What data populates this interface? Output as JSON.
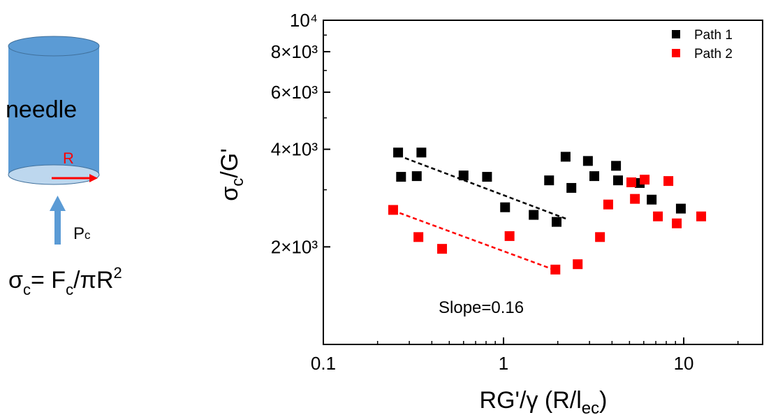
{
  "diagram": {
    "cylinder_label": "needle",
    "radius_label": "R",
    "force_label": {
      "main": "P",
      "sub": "c"
    },
    "equation": [
      {
        "text": "σ"
      },
      {
        "text": "c",
        "sub": true
      },
      {
        "text": "= F"
      },
      {
        "text": "c",
        "sub": true
      },
      {
        "text": "/πR"
      },
      {
        "text": "2",
        "sup": true
      }
    ]
  },
  "chart_data": {
    "type": "scatter",
    "xlabel": {
      "main": "RG'/γ  (R/l",
      "sub": "ec",
      "rest": ")"
    },
    "ylabel": {
      "main": "σ",
      "sub": "c",
      "rest": "/G'"
    },
    "xscale": "log",
    "yscale": "log",
    "xlim": [
      0.1,
      27.4
    ],
    "ylim": [
      1000,
      10000
    ],
    "xticks": [
      0.1,
      1,
      10
    ],
    "xminorticks": [
      0.2,
      0.3,
      0.4,
      0.5,
      0.6,
      0.7,
      0.8,
      0.9,
      2,
      3,
      4,
      5,
      6,
      7,
      8,
      9,
      20
    ],
    "yticks": [
      {
        "value": 2000,
        "label": "2×10³"
      },
      {
        "value": 4000,
        "label": "4×10³"
      },
      {
        "value": 6000,
        "label": "6×10³"
      },
      {
        "value": 8000,
        "label": "8×10³"
      },
      {
        "value": 10000,
        "label": "10⁴"
      }
    ],
    "yminorticks": [
      1000,
      3000,
      5000,
      7000,
      9000
    ],
    "legend": "upper right",
    "series": [
      {
        "name": "Path 1",
        "color": "#000000",
        "x": [
          0.26,
          0.27,
          0.33,
          0.35,
          0.6,
          0.81,
          1.02,
          1.47,
          1.97,
          1.79,
          2.21,
          2.38,
          2.94,
          3.19,
          4.21,
          4.32,
          5.7,
          6.64,
          9.64
        ],
        "values": [
          3908,
          3289,
          3305,
          3908,
          3321,
          3289,
          2649,
          2510,
          2388,
          3207,
          3793,
          3040,
          3681,
          3305,
          3556,
          3207,
          3148,
          2797,
          2624
        ]
      },
      {
        "name": "Path 2",
        "color": "#ff0000",
        "x": [
          0.244,
          0.337,
          0.456,
          1.08,
          1.94,
          2.58,
          3.43,
          3.81,
          5.12,
          5.36,
          6.07,
          8.22,
          7.19,
          9.15,
          12.5
        ],
        "values": [
          2600,
          2144,
          1972,
          2159,
          1702,
          1768,
          2144,
          2702,
          3163,
          2812,
          3224,
          3192,
          2483,
          2363,
          2483
        ]
      }
    ],
    "fits": [
      {
        "color": "#000000",
        "x": [
          0.284,
          2.25
        ],
        "values": [
          3758,
          2436
        ]
      },
      {
        "color": "#ff0000",
        "x": [
          0.244,
          1.94
        ],
        "values": [
          2587,
          1694
        ]
      }
    ],
    "annotation": "Slope=0.16"
  }
}
